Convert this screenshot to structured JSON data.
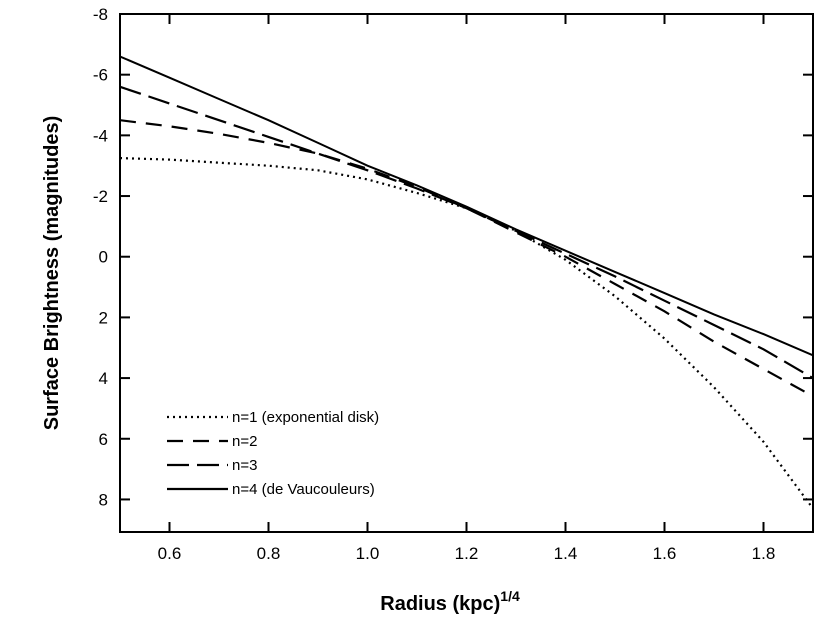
{
  "chart_data": {
    "type": "line",
    "title": "",
    "xlabel": "Radius (kpc)",
    "xlabel_superscript": "1/4",
    "ylabel": "Surface Brightness (magnitudes)",
    "xlim": [
      0.5,
      1.9
    ],
    "ylim": [
      -8,
      9
    ],
    "y_inverted": true,
    "grid": false,
    "legend_position": "bottom-left",
    "x_ticks": [
      "0.6",
      "0.8",
      "1.0",
      "1.2",
      "1.4",
      "1.6",
      "1.8"
    ],
    "y_ticks": [
      "-8",
      "-6",
      "-4",
      "-2",
      "0",
      "2",
      "4",
      "6",
      "8"
    ],
    "series": [
      {
        "name": "n=1 (exponential disk)",
        "style": "dotted",
        "x": [
          0.5,
          0.6,
          0.7,
          0.8,
          0.9,
          1.0,
          1.1,
          1.2,
          1.3,
          1.4,
          1.5,
          1.6,
          1.7,
          1.8,
          1.9
        ],
        "y": [
          -3.25,
          -3.2,
          -3.1,
          -3.0,
          -2.85,
          -2.55,
          -2.1,
          -1.6,
          -0.85,
          0.1,
          1.3,
          2.7,
          4.3,
          6.1,
          8.3
        ]
      },
      {
        "name": "n=2",
        "style": "dashed",
        "x": [
          0.5,
          0.6,
          0.7,
          0.8,
          0.9,
          1.0,
          1.1,
          1.2,
          1.3,
          1.4,
          1.5,
          1.6,
          1.7,
          1.8,
          1.9
        ],
        "y": [
          -4.5,
          -4.3,
          -4.05,
          -3.75,
          -3.4,
          -2.9,
          -2.3,
          -1.6,
          -0.8,
          0.0,
          0.9,
          1.8,
          2.8,
          3.7,
          4.6
        ]
      },
      {
        "name": "n=3",
        "style": "long-dashed",
        "x": [
          0.5,
          0.6,
          0.7,
          0.8,
          0.9,
          1.0,
          1.1,
          1.2,
          1.3,
          1.4,
          1.5,
          1.6,
          1.7,
          1.8,
          1.9
        ],
        "y": [
          -5.6,
          -5.05,
          -4.5,
          -3.95,
          -3.4,
          -2.85,
          -2.25,
          -1.6,
          -0.85,
          -0.1,
          0.65,
          1.45,
          2.25,
          3.05,
          4.0
        ]
      },
      {
        "name": "n=4 (de Vaucouleurs)",
        "style": "solid",
        "x": [
          0.5,
          0.6,
          0.7,
          0.8,
          0.9,
          1.0,
          1.1,
          1.2,
          1.3,
          1.4,
          1.5,
          1.6,
          1.7,
          1.8,
          1.9
        ],
        "y": [
          -6.6,
          -5.9,
          -5.2,
          -4.5,
          -3.75,
          -3.0,
          -2.35,
          -1.65,
          -0.9,
          -0.2,
          0.5,
          1.2,
          1.9,
          2.55,
          3.25
        ]
      }
    ]
  }
}
